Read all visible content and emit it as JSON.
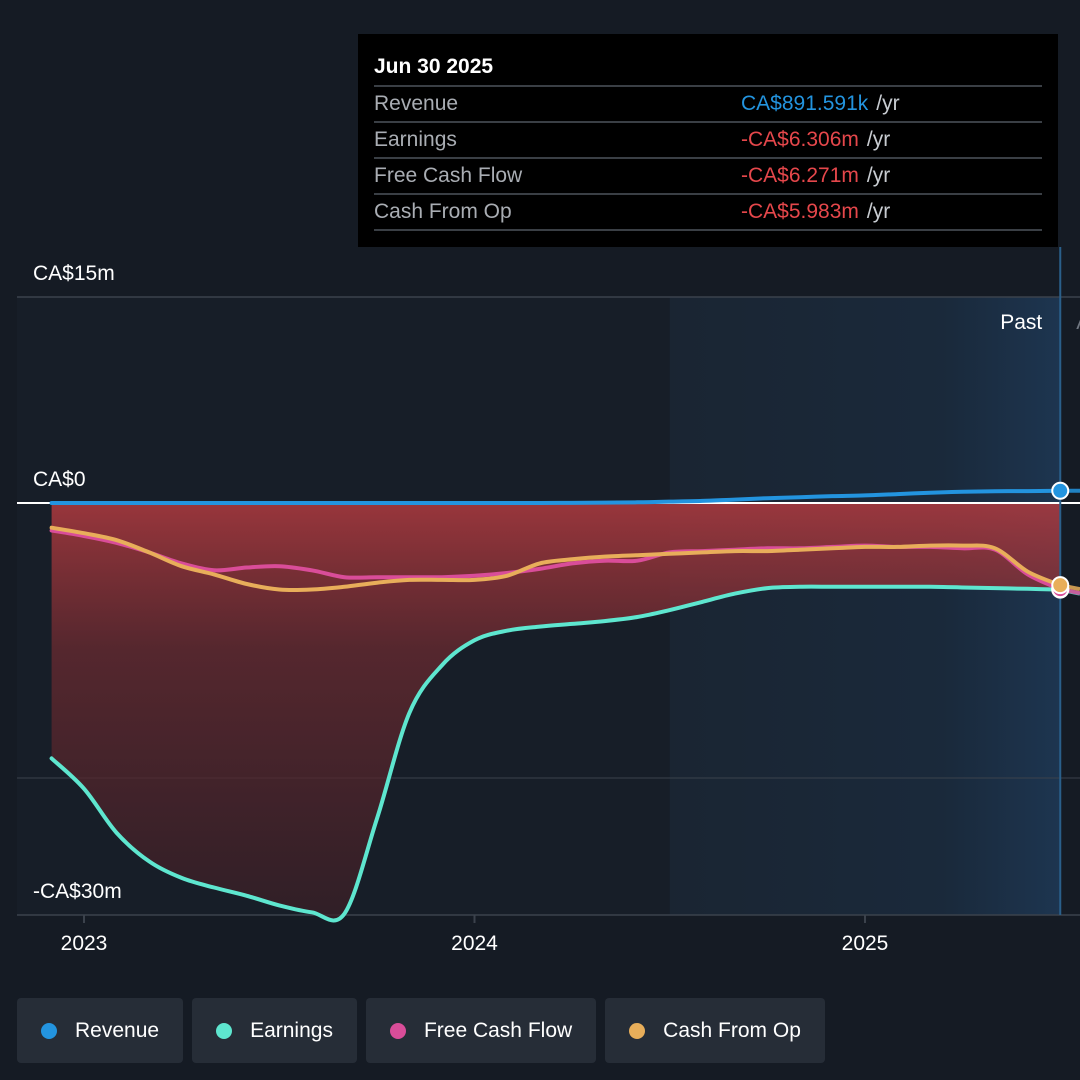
{
  "chart_data": {
    "type": "line",
    "x": [
      2022.917,
      2023.0,
      2023.083,
      2023.167,
      2023.25,
      2023.333,
      2023.417,
      2023.5,
      2023.583,
      2023.667,
      2023.75,
      2023.833,
      2023.917,
      2024.0,
      2024.083,
      2024.167,
      2024.25,
      2024.333,
      2024.417,
      2024.5,
      2024.583,
      2024.667,
      2024.75,
      2024.833,
      2024.917,
      2025.0,
      2025.083,
      2025.167,
      2025.25,
      2025.333,
      2025.417,
      2025.5
    ],
    "series": [
      {
        "name": "Revenue",
        "color": "#2394df",
        "values": [
          0.0,
          0.0,
          0.0,
          0.0,
          0.0,
          0.0,
          0.0,
          0.0,
          0.0,
          0.0,
          0.0,
          0.0,
          0.0,
          0.0,
          0.0,
          0.0,
          0.01,
          0.03,
          0.05,
          0.1,
          0.15,
          0.25,
          0.35,
          0.42,
          0.5,
          0.55,
          0.65,
          0.75,
          0.82,
          0.85,
          0.87,
          0.89
        ]
      },
      {
        "name": "Earnings",
        "color": "#5ee6cf",
        "values": [
          -18.6,
          -20.8,
          -24.0,
          -26.1,
          -27.3,
          -28.0,
          -28.6,
          -29.3,
          -29.8,
          -29.9,
          -23.0,
          -15.3,
          -11.8,
          -10.0,
          -9.3,
          -9.0,
          -8.8,
          -8.6,
          -8.3,
          -7.8,
          -7.2,
          -6.6,
          -6.2,
          -6.1,
          -6.1,
          -6.1,
          -6.1,
          -6.1,
          -6.15,
          -6.2,
          -6.25,
          -6.306
        ]
      },
      {
        "name": "Free Cash Flow",
        "color": "#d94d99",
        "values": [
          -2.0,
          -2.4,
          -2.9,
          -3.6,
          -4.4,
          -4.9,
          -4.7,
          -4.6,
          -4.9,
          -5.4,
          -5.4,
          -5.4,
          -5.4,
          -5.3,
          -5.1,
          -4.8,
          -4.4,
          -4.2,
          -4.2,
          -3.6,
          -3.5,
          -3.4,
          -3.3,
          -3.3,
          -3.2,
          -3.1,
          -3.2,
          -3.2,
          -3.3,
          -3.4,
          -5.2,
          -6.271
        ]
      },
      {
        "name": "Cash From Op",
        "color": "#e8ae5a",
        "values": [
          -1.8,
          -2.2,
          -2.7,
          -3.6,
          -4.6,
          -5.2,
          -5.9,
          -6.3,
          -6.3,
          -6.1,
          -5.8,
          -5.6,
          -5.6,
          -5.6,
          -5.3,
          -4.4,
          -4.1,
          -3.9,
          -3.8,
          -3.7,
          -3.6,
          -3.5,
          -3.5,
          -3.4,
          -3.3,
          -3.2,
          -3.2,
          -3.1,
          -3.1,
          -3.3,
          -5.0,
          -5.983
        ]
      }
    ],
    "ylim": [
      -30,
      15
    ],
    "y_tick_labels": [
      "CA$15m",
      "CA$0",
      "-CA$30m"
    ],
    "x_tick_labels": [
      {
        "label": "2023",
        "value": 2023.0
      },
      {
        "label": "2024",
        "value": 2024.0
      },
      {
        "label": "2025",
        "value": 2025.0
      }
    ],
    "past_label": "Past",
    "highlight_start": 2024.5,
    "highlight_end": 2025.5,
    "legend": [
      "Revenue",
      "Earnings",
      "Free Cash Flow",
      "Cash From Op"
    ]
  },
  "tooltip": {
    "date": "Jun 30 2025",
    "rows": [
      {
        "name": "Revenue",
        "value": "CA$891.591k",
        "unit": "/yr",
        "color": "#2394df"
      },
      {
        "name": "Earnings",
        "value": "-CA$6.306m",
        "unit": "/yr",
        "color": "#e5474b"
      },
      {
        "name": "Free Cash Flow",
        "value": "-CA$6.271m",
        "unit": "/yr",
        "color": "#e5474b"
      },
      {
        "name": "Cash From Op",
        "value": "-CA$5.983m",
        "unit": "/yr",
        "color": "#e5474b"
      }
    ]
  },
  "legend_items": [
    {
      "label": "Revenue",
      "color": "#2394df"
    },
    {
      "label": "Earnings",
      "color": "#5ee6cf"
    },
    {
      "label": "Free Cash Flow",
      "color": "#d94d99"
    },
    {
      "label": "Cash From Op",
      "color": "#e8ae5a"
    }
  ]
}
